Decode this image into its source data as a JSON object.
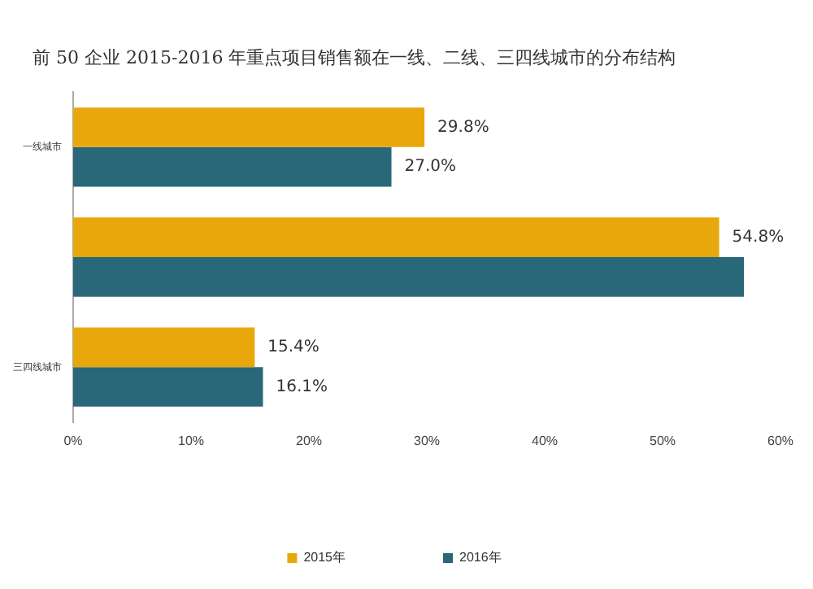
{
  "chart_data": {
    "type": "bar",
    "orientation": "horizontal",
    "title": "前 50 企业 2015-2016 年重点项目销售额在一线、二线、三四线城市的分布结构",
    "categories": [
      "一线城市",
      null,
      "三四线城市"
    ],
    "series": [
      {
        "name": "2015年",
        "color": "#e8a80c",
        "values": [
          29.8,
          54.8,
          15.4
        ],
        "value_labels": [
          "29.8%",
          "54.8%",
          "15.4%"
        ]
      },
      {
        "name": "2016年",
        "color": "#286878",
        "values": [
          27.0,
          56.9,
          16.1
        ],
        "value_labels": [
          "27.0%",
          null,
          "16.1%"
        ]
      }
    ],
    "xlim": [
      0,
      60
    ],
    "xticks": [
      {
        "value": 0,
        "label": "0%"
      },
      {
        "value": 10,
        "label": "10%"
      },
      {
        "value": 20,
        "label": "20%"
      },
      {
        "value": 30,
        "label": "30%"
      },
      {
        "value": 40,
        "label": "40%"
      },
      {
        "value": 50,
        "label": "50%"
      },
      {
        "value": 60,
        "label": "60%"
      }
    ],
    "grid": false,
    "legend": "bottom"
  }
}
